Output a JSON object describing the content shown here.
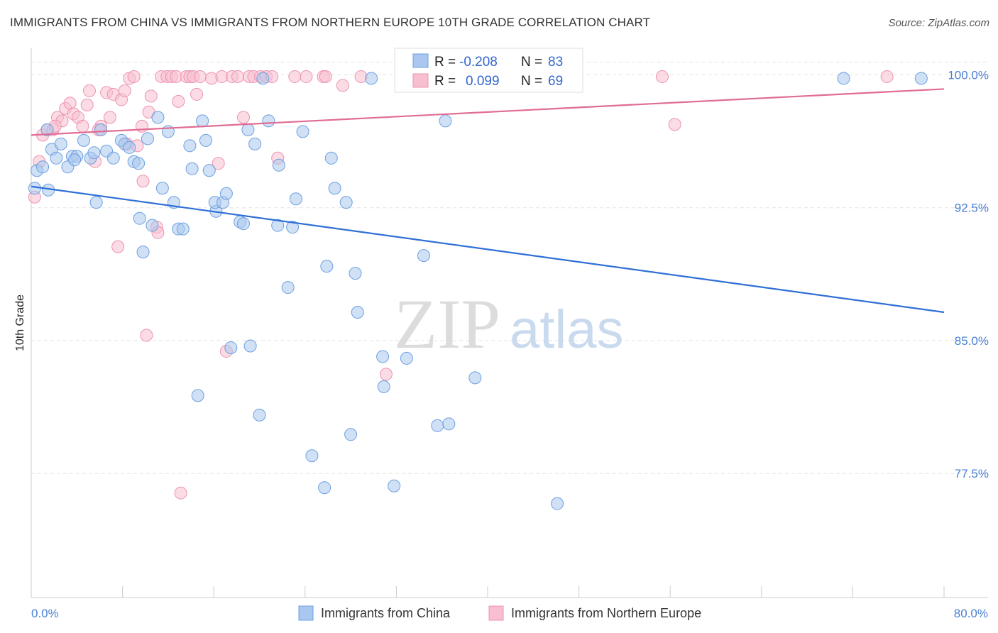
{
  "header": {
    "title": "IMMIGRANTS FROM CHINA VS IMMIGRANTS FROM NORTHERN EUROPE 10TH GRADE CORRELATION CHART",
    "source": "Source: ZipAtlas.com"
  },
  "watermark": {
    "zip": "ZIP",
    "atlas": "atlas"
  },
  "colors": {
    "china_fill": "#aac8ef",
    "china_stroke": "#6d9fe0",
    "china_line": "#2f6fd6",
    "europe_fill": "#f7bfd0",
    "europe_stroke": "#ec93b0",
    "europe_line": "#e06c94",
    "grid": "#e3e3e3",
    "axis_label": "#4a7fd4"
  },
  "legend": {
    "china": {
      "r_label": "R =",
      "r_value": "-0.208",
      "n_label": "N =",
      "n_value": "83"
    },
    "europe": {
      "r_label": "R =",
      "r_value": "0.099",
      "n_label": "N =",
      "n_value": "69"
    }
  },
  "chart_data": {
    "type": "scatter",
    "title": "IMMIGRANTS FROM CHINA VS IMMIGRANTS FROM NORTHERN EUROPE 10TH GRADE CORRELATION CHART",
    "xlabel": "",
    "ylabel": "10th Grade",
    "xlim": [
      0,
      80
    ],
    "ylim": [
      70.5,
      101.5
    ],
    "x_tick_labels": [
      "0.0%",
      "80.0%"
    ],
    "y_ticks": [
      {
        "value": 100,
        "label": "100.0%"
      },
      {
        "value": 92.5,
        "label": "92.5%"
      },
      {
        "value": 85,
        "label": "85.0%"
      },
      {
        "value": 77.5,
        "label": "77.5%"
      }
    ],
    "series": [
      {
        "name": "Immigrants from China",
        "r": -0.208,
        "n": 83,
        "trend": {
          "x": [
            0,
            80
          ],
          "y": [
            93.7,
            86.6
          ]
        },
        "points": [
          [
            0.5,
            94.6
          ],
          [
            1.0,
            94.8
          ],
          [
            1.5,
            93.5
          ],
          [
            1.8,
            95.8
          ],
          [
            2.2,
            95.3
          ],
          [
            2.6,
            96.1
          ],
          [
            3.2,
            94.8
          ],
          [
            3.6,
            95.4
          ],
          [
            4.0,
            95.4
          ],
          [
            4.6,
            96.3
          ],
          [
            5.2,
            95.3
          ],
          [
            5.5,
            95.6
          ],
          [
            5.7,
            92.8
          ],
          [
            6.1,
            96.9
          ],
          [
            6.6,
            95.7
          ],
          [
            7.2,
            95.3
          ],
          [
            7.9,
            96.3
          ],
          [
            8.2,
            96.1
          ],
          [
            8.6,
            95.9
          ],
          [
            9.0,
            95.1
          ],
          [
            9.5,
            91.9
          ],
          [
            9.8,
            90.0
          ],
          [
            10.2,
            96.4
          ],
          [
            10.6,
            91.5
          ],
          [
            11.1,
            97.6
          ],
          [
            11.5,
            93.6
          ],
          [
            12.0,
            96.8
          ],
          [
            12.5,
            92.8
          ],
          [
            12.9,
            91.3
          ],
          [
            13.3,
            91.3
          ],
          [
            14.1,
            94.7
          ],
          [
            14.6,
            81.9
          ],
          [
            15.0,
            97.4
          ],
          [
            15.3,
            96.3
          ],
          [
            15.6,
            94.6
          ],
          [
            16.2,
            92.3
          ],
          [
            16.1,
            92.8
          ],
          [
            16.8,
            92.8
          ],
          [
            17.1,
            93.3
          ],
          [
            17.5,
            84.6
          ],
          [
            18.3,
            91.7
          ],
          [
            18.6,
            91.6
          ],
          [
            19.0,
            96.9
          ],
          [
            19.2,
            84.7
          ],
          [
            19.6,
            96.1
          ],
          [
            20.0,
            80.8
          ],
          [
            20.3,
            99.8
          ],
          [
            20.8,
            97.4
          ],
          [
            21.6,
            91.5
          ],
          [
            21.7,
            94.9
          ],
          [
            22.5,
            88.0
          ],
          [
            22.9,
            91.4
          ],
          [
            23.2,
            93.0
          ],
          [
            23.8,
            96.8
          ],
          [
            24.6,
            78.5
          ],
          [
            25.7,
            76.7
          ],
          [
            25.9,
            89.2
          ],
          [
            26.3,
            95.3
          ],
          [
            26.6,
            93.6
          ],
          [
            27.6,
            92.8
          ],
          [
            28.0,
            79.7
          ],
          [
            28.4,
            88.8
          ],
          [
            28.6,
            86.6
          ],
          [
            29.8,
            99.8
          ],
          [
            30.8,
            84.1
          ],
          [
            30.9,
            82.4
          ],
          [
            31.8,
            76.8
          ],
          [
            32.9,
            84.0
          ],
          [
            34.0,
            99.9
          ],
          [
            34.4,
            89.8
          ],
          [
            35.6,
            80.2
          ],
          [
            36.3,
            97.4
          ],
          [
            36.6,
            80.3
          ],
          [
            38.9,
            82.9
          ],
          [
            40.0,
            99.8
          ],
          [
            46.1,
            75.8
          ],
          [
            71.2,
            99.8
          ],
          [
            78.0,
            99.8
          ],
          [
            0.3,
            93.6
          ],
          [
            1.4,
            96.9
          ],
          [
            3.8,
            95.2
          ],
          [
            9.4,
            95.0
          ],
          [
            13.9,
            96.0
          ]
        ]
      },
      {
        "name": "Immigrants from Northern Europe",
        "r": 0.099,
        "n": 69,
        "trend": {
          "x": [
            0,
            80
          ],
          "y": [
            96.6,
            99.2
          ]
        },
        "points": [
          [
            0.3,
            93.1
          ],
          [
            0.7,
            95.1
          ],
          [
            1.0,
            96.6
          ],
          [
            1.4,
            96.9
          ],
          [
            1.9,
            96.9
          ],
          [
            2.3,
            97.6
          ],
          [
            2.7,
            97.4
          ],
          [
            3.0,
            98.1
          ],
          [
            3.4,
            98.4
          ],
          [
            3.7,
            97.8
          ],
          [
            4.1,
            97.6
          ],
          [
            4.5,
            97.1
          ],
          [
            4.9,
            98.3
          ],
          [
            5.1,
            99.1
          ],
          [
            5.6,
            95.1
          ],
          [
            6.1,
            97.1
          ],
          [
            6.6,
            99.0
          ],
          [
            6.9,
            97.6
          ],
          [
            7.2,
            98.9
          ],
          [
            7.6,
            90.3
          ],
          [
            7.9,
            98.6
          ],
          [
            8.2,
            99.1
          ],
          [
            8.6,
            99.8
          ],
          [
            9.0,
            99.9
          ],
          [
            9.3,
            96.0
          ],
          [
            9.7,
            97.1
          ],
          [
            9.8,
            94.0
          ],
          [
            10.1,
            85.3
          ],
          [
            10.3,
            97.9
          ],
          [
            10.5,
            98.8
          ],
          [
            11.0,
            91.4
          ],
          [
            11.1,
            91.1
          ],
          [
            11.4,
            99.9
          ],
          [
            11.9,
            99.9
          ],
          [
            12.3,
            99.9
          ],
          [
            12.7,
            99.9
          ],
          [
            12.9,
            98.5
          ],
          [
            13.1,
            76.4
          ],
          [
            13.6,
            99.9
          ],
          [
            13.9,
            99.9
          ],
          [
            14.2,
            99.9
          ],
          [
            14.5,
            98.9
          ],
          [
            14.8,
            99.9
          ],
          [
            15.8,
            99.8
          ],
          [
            16.4,
            95.0
          ],
          [
            16.7,
            99.9
          ],
          [
            17.1,
            84.4
          ],
          [
            17.6,
            99.9
          ],
          [
            18.1,
            99.9
          ],
          [
            18.6,
            97.6
          ],
          [
            19.1,
            99.9
          ],
          [
            19.5,
            99.9
          ],
          [
            20.1,
            99.9
          ],
          [
            20.6,
            99.9
          ],
          [
            21.1,
            99.9
          ],
          [
            21.6,
            95.3
          ],
          [
            23.1,
            99.9
          ],
          [
            24.1,
            99.9
          ],
          [
            25.6,
            99.9
          ],
          [
            25.8,
            99.9
          ],
          [
            27.3,
            99.4
          ],
          [
            28.9,
            99.9
          ],
          [
            31.1,
            83.1
          ],
          [
            55.3,
            99.9
          ],
          [
            56.4,
            97.2
          ],
          [
            75.0,
            99.9
          ],
          [
            2.1,
            97.1
          ],
          [
            5.9,
            96.9
          ],
          [
            8.4,
            96.1
          ]
        ]
      }
    ]
  }
}
